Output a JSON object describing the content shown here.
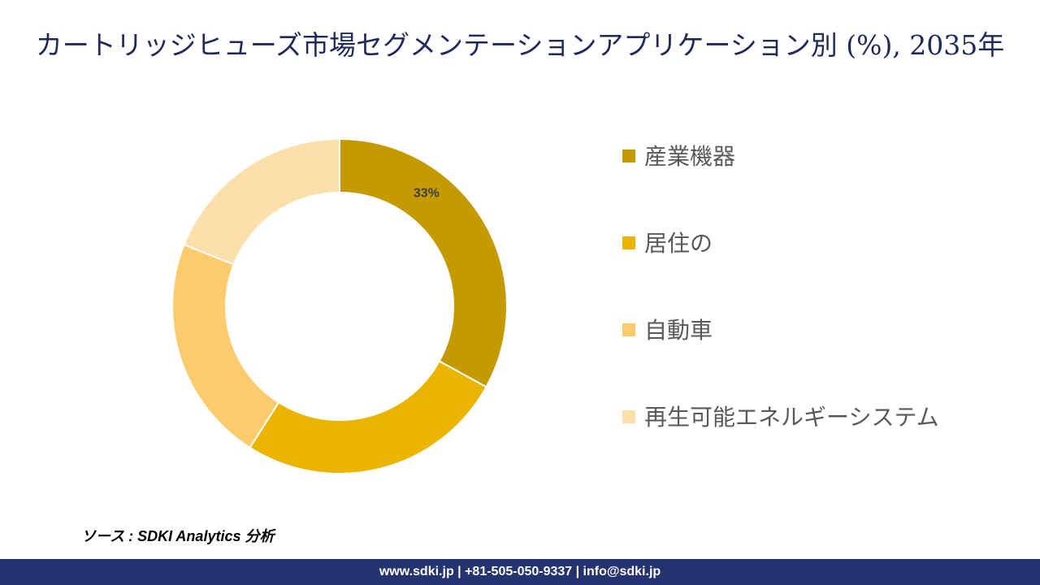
{
  "chart_data": {
    "type": "donut",
    "title": "カートリッジヒューズ市場セグメンテーションアプリケーション別 (%), 2035年",
    "categories": [
      "産業機器",
      "居住の",
      "自動車",
      "再生可能エネルギーシステム"
    ],
    "values": [
      33,
      26,
      22,
      19
    ],
    "value_labels": [
      "33%",
      null,
      null,
      null
    ],
    "colors": [
      "#c49a00",
      "#ebb400",
      "#fccb6e",
      "#fddfaa"
    ],
    "source": "ソース : SDKI Analytics 分析"
  },
  "footer": {
    "text": "www.sdki.jp | +81-505-050-9337 | info@sdki.jp"
  }
}
